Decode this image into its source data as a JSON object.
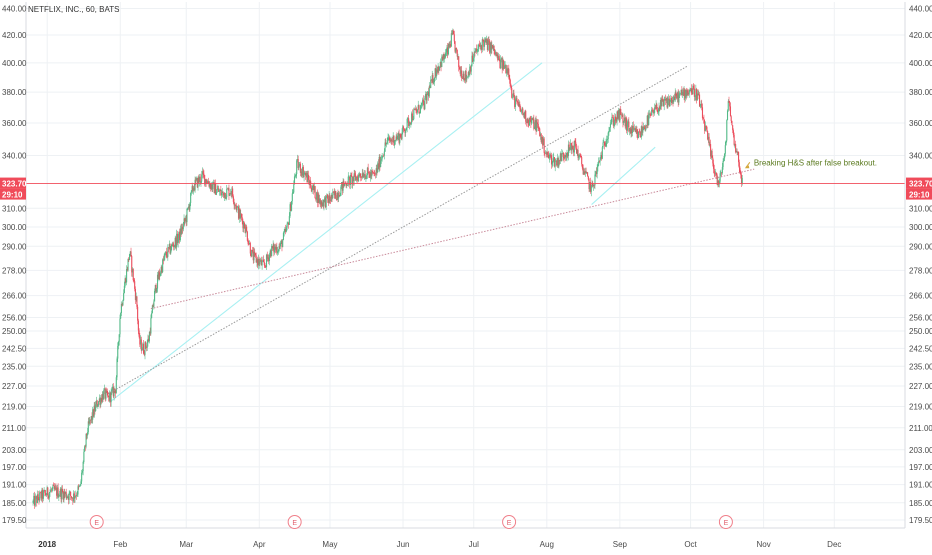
{
  "chart_data": {
    "type": "candlestick",
    "title": "NETFLIX, INC., 60, BATS",
    "y_axis": {
      "scale": "log",
      "range": [
        177,
        445
      ],
      "ticks": [
        "440.00",
        "420.00",
        "400.00",
        "380.00",
        "360.00",
        "340.00",
        "310.00",
        "300.00",
        "290.00",
        "278.00",
        "266.00",
        "256.00",
        "250.00",
        "242.50",
        "235.00",
        "227.00",
        "219.00",
        "211.00",
        "203.00",
        "197.00",
        "191.00",
        "185.00",
        "179.50"
      ],
      "ticks_with_bg": [
        "323.70"
      ],
      "position": "both"
    },
    "x_axis": {
      "range": [
        "2017-12-23",
        "2018-12-31"
      ],
      "ticks": [
        {
          "label": "2018",
          "date": "2018-01-01",
          "bold": true
        },
        {
          "label": "Feb",
          "date": "2018-02-01"
        },
        {
          "label": "Mar",
          "date": "2018-03-01"
        },
        {
          "label": "Apr",
          "date": "2018-04-01"
        },
        {
          "label": "May",
          "date": "2018-05-01"
        },
        {
          "label": "Jun",
          "date": "2018-06-01"
        },
        {
          "label": "Jul",
          "date": "2018-07-01"
        },
        {
          "label": "Aug",
          "date": "2018-08-01"
        },
        {
          "label": "Sep",
          "date": "2018-09-01"
        },
        {
          "label": "Oct",
          "date": "2018-10-01"
        },
        {
          "label": "Nov",
          "date": "2018-11-01"
        },
        {
          "label": "Dec",
          "date": "2018-12-01"
        }
      ]
    },
    "grid": true,
    "last_price": {
      "value": 323.7,
      "label": "323.70",
      "countdown": "29:10",
      "color": "#f04b5a"
    },
    "price_path": [
      [
        "2017-12-26",
        185
      ],
      [
        "2017-12-29",
        187
      ],
      [
        "2018-01-03",
        189
      ],
      [
        "2018-01-08",
        188
      ],
      [
        "2018-01-12",
        187
      ],
      [
        "2018-01-15",
        190
      ],
      [
        "2018-01-18",
        210
      ],
      [
        "2018-01-22",
        220
      ],
      [
        "2018-01-25",
        224
      ],
      [
        "2018-01-27",
        222
      ],
      [
        "2018-01-30",
        226
      ],
      [
        "2018-02-01",
        258
      ],
      [
        "2018-02-05",
        287
      ],
      [
        "2018-02-08",
        262
      ],
      [
        "2018-02-09",
        245
      ],
      [
        "2018-02-11",
        242
      ],
      [
        "2018-02-13",
        246
      ],
      [
        "2018-02-16",
        270
      ],
      [
        "2018-02-20",
        285
      ],
      [
        "2018-02-26",
        295
      ],
      [
        "2018-03-01",
        305
      ],
      [
        "2018-03-04",
        322
      ],
      [
        "2018-03-08",
        328
      ],
      [
        "2018-03-12",
        322
      ],
      [
        "2018-03-16",
        318
      ],
      [
        "2018-03-20",
        320
      ],
      [
        "2018-03-23",
        308
      ],
      [
        "2018-03-26",
        300
      ],
      [
        "2018-03-29",
        285
      ],
      [
        "2018-04-03",
        280
      ],
      [
        "2018-04-06",
        288
      ],
      [
        "2018-04-10",
        290
      ],
      [
        "2018-04-13",
        300
      ],
      [
        "2018-04-17",
        335
      ],
      [
        "2018-04-20",
        330
      ],
      [
        "2018-04-24",
        320
      ],
      [
        "2018-04-27",
        313
      ],
      [
        "2018-05-01",
        315
      ],
      [
        "2018-05-04",
        318
      ],
      [
        "2018-05-08",
        325
      ],
      [
        "2018-05-11",
        326
      ],
      [
        "2018-05-15",
        330
      ],
      [
        "2018-05-20",
        328
      ],
      [
        "2018-05-25",
        348
      ],
      [
        "2018-05-31",
        352
      ],
      [
        "2018-06-05",
        365
      ],
      [
        "2018-06-10",
        372
      ],
      [
        "2018-06-15",
        395
      ],
      [
        "2018-06-20",
        408
      ],
      [
        "2018-06-22",
        420
      ],
      [
        "2018-06-25",
        395
      ],
      [
        "2018-06-28",
        390
      ],
      [
        "2018-07-01",
        405
      ],
      [
        "2018-07-05",
        415
      ],
      [
        "2018-07-09",
        410
      ],
      [
        "2018-07-12",
        400
      ],
      [
        "2018-07-16",
        395
      ],
      [
        "2018-07-17",
        378
      ],
      [
        "2018-07-20",
        370
      ],
      [
        "2018-07-24",
        362
      ],
      [
        "2018-07-28",
        358
      ],
      [
        "2018-08-01",
        340
      ],
      [
        "2018-08-05",
        336
      ],
      [
        "2018-08-09",
        342
      ],
      [
        "2018-08-13",
        346
      ],
      [
        "2018-08-17",
        330
      ],
      [
        "2018-08-20",
        320
      ],
      [
        "2018-08-24",
        340
      ],
      [
        "2018-08-28",
        360
      ],
      [
        "2018-09-01",
        365
      ],
      [
        "2018-09-05",
        356
      ],
      [
        "2018-09-09",
        352
      ],
      [
        "2018-09-13",
        362
      ],
      [
        "2018-09-17",
        370
      ],
      [
        "2018-09-22",
        374
      ],
      [
        "2018-09-27",
        378
      ],
      [
        "2018-10-01",
        382
      ],
      [
        "2018-10-04",
        378
      ],
      [
        "2018-10-07",
        358
      ],
      [
        "2018-10-10",
        338
      ],
      [
        "2018-10-13",
        322
      ],
      [
        "2018-10-16",
        346
      ],
      [
        "2018-10-17",
        378
      ],
      [
        "2018-10-19",
        352
      ],
      [
        "2018-10-21",
        340
      ],
      [
        "2018-10-23",
        323.7
      ]
    ],
    "trendlines": [
      {
        "name": "",
        "color": "#9a9a9a",
        "style": "dotted",
        "from": [
          "2018-01-27",
          224
        ],
        "to": [
          "2018-09-30",
          398
        ]
      },
      {
        "name": "",
        "color": "#c98a9a",
        "style": "dotted",
        "from": [
          "2018-02-14",
          260
        ],
        "to": [
          "2018-10-28",
          332
        ]
      },
      {
        "name": "",
        "color": "#a8f0f2",
        "style": "solid",
        "from": [
          "2018-01-28",
          221
        ],
        "to": [
          "2018-07-30",
          400
        ]
      },
      {
        "name": "",
        "color": "#a8f0f2",
        "style": "solid",
        "from": [
          "2018-08-20",
          312
        ],
        "to": [
          "2018-09-16",
          345
        ]
      }
    ],
    "annotations": [
      {
        "text": "Breaking H&S after false breakout.",
        "date": "2018-10-27",
        "value": 336,
        "arrow_to": [
          "2018-10-24",
          334
        ],
        "color": "#5b7a1f"
      }
    ],
    "earnings_markers": [
      {
        "label": "E",
        "date": "2018-01-22"
      },
      {
        "label": "E",
        "date": "2018-04-16"
      },
      {
        "label": "E",
        "date": "2018-07-16"
      },
      {
        "label": "E",
        "date": "2018-10-16"
      }
    ],
    "colors": {
      "up": "#53b987",
      "down": "#eb4d5c",
      "grid": "#eef1f4",
      "axis_line": "#d8dbe0"
    }
  }
}
